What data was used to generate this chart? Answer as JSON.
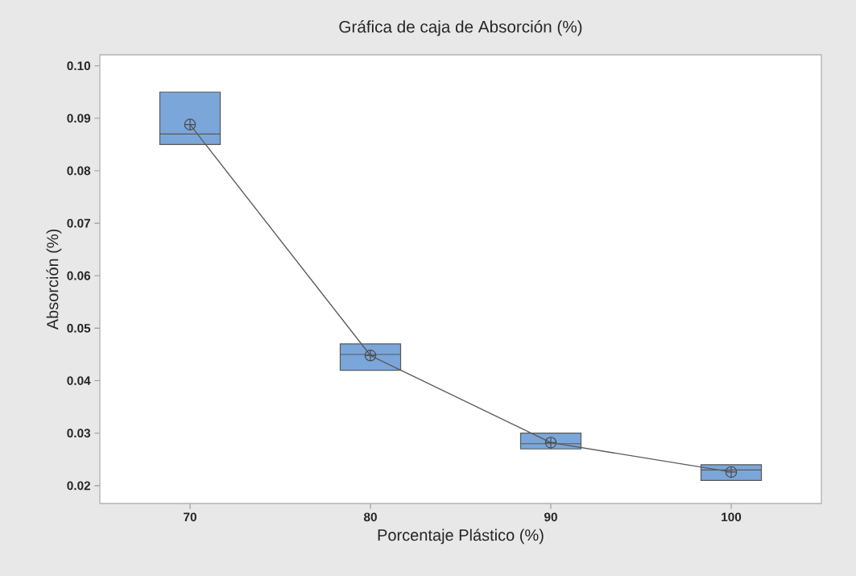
{
  "chart_data": {
    "type": "box",
    "title": "Gráfica de caja de Absorción (%)",
    "xlabel": "Porcentaje Plástico (%)",
    "ylabel": "Absorción (%)",
    "categories": [
      "70",
      "80",
      "90",
      "100"
    ],
    "color": "#7ba6da",
    "boxes": [
      {
        "low": 0.085,
        "q1": 0.085,
        "median": 0.087,
        "q3": 0.095,
        "high": 0.095,
        "mean": 0.0888
      },
      {
        "low": 0.042,
        "q1": 0.042,
        "median": 0.045,
        "q3": 0.047,
        "high": 0.047,
        "mean": 0.0448
      },
      {
        "low": 0.027,
        "q1": 0.027,
        "median": 0.028,
        "q3": 0.03,
        "high": 0.03,
        "mean": 0.0282
      },
      {
        "low": 0.021,
        "q1": 0.021,
        "median": 0.023,
        "q3": 0.024,
        "high": 0.024,
        "mean": 0.0226
      }
    ],
    "series": [
      {
        "type": "line",
        "color": "#5a5a5a",
        "values": [
          0.0888,
          0.0448,
          0.0282,
          0.0226
        ]
      }
    ],
    "ylim": [
      0.0166,
      0.1021
    ],
    "yticks": [
      0.02,
      0.03,
      0.04,
      0.05,
      0.06,
      0.07,
      0.08,
      0.09,
      {
        "value": 0.1,
        "label": "0.10"
      }
    ]
  }
}
